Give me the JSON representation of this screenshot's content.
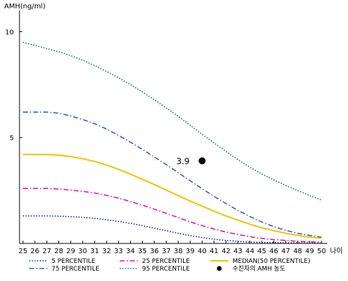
{
  "chart_data": {
    "type": "line",
    "ylabel": "AMH(ng/ml)",
    "xlabel": "나이",
    "ylim": [
      0,
      11
    ],
    "xlim": [
      25,
      50
    ],
    "yticks": [
      5,
      10
    ],
    "x": [
      25,
      26,
      27,
      28,
      29,
      30,
      31,
      32,
      33,
      34,
      35,
      36,
      37,
      38,
      39,
      40,
      41,
      42,
      43,
      44,
      45,
      46,
      47,
      48,
      49,
      50
    ],
    "grid": false,
    "legend_position": "bottom",
    "series": [
      {
        "name": "5 PERCENTILE",
        "color": "#1f2a8a",
        "dash": "1.6 2.2",
        "values": [
          1.3,
          1.3,
          1.3,
          1.29,
          1.26,
          1.23,
          1.19,
          1.12,
          1.04,
          0.95,
          0.84,
          0.72,
          0.6,
          0.48,
          0.37,
          0.28,
          0.2,
          0.14,
          0.1,
          0.07,
          0.05,
          0.04,
          0.03,
          0.03,
          0.02,
          0.02
        ]
      },
      {
        "name": "25 PERCENTILE",
        "color": "#e0168f",
        "dash": "7 3 1.6 3",
        "values": [
          2.6,
          2.6,
          2.6,
          2.57,
          2.52,
          2.46,
          2.38,
          2.27,
          2.14,
          1.98,
          1.81,
          1.62,
          1.42,
          1.22,
          1.02,
          0.84,
          0.68,
          0.54,
          0.42,
          0.32,
          0.24,
          0.18,
          0.14,
          0.1,
          0.08,
          0.06
        ]
      },
      {
        "name": "75 PERCENTILE",
        "color": "#3a5bc7",
        "dash": "7 3 1.6 3",
        "values": [
          6.2,
          6.2,
          6.2,
          6.15,
          6.02,
          5.85,
          5.65,
          5.4,
          5.1,
          4.78,
          4.44,
          4.08,
          3.72,
          3.34,
          2.96,
          2.58,
          2.22,
          1.88,
          1.56,
          1.27,
          1.01,
          0.79,
          0.62,
          0.48,
          0.38,
          0.3
        ]
      },
      {
        "name": "95 PERCENTILE",
        "color": "#1e7a4c",
        "dash": "1.6 2.2",
        "values": [
          9.5,
          9.35,
          9.2,
          9.05,
          8.87,
          8.65,
          8.4,
          8.12,
          7.82,
          7.5,
          7.15,
          6.78,
          6.4,
          6.0,
          5.58,
          5.15,
          4.74,
          4.34,
          3.95,
          3.6,
          3.28,
          3.0,
          2.74,
          2.5,
          2.26,
          2.05
        ]
      },
      {
        "name": "MEDIAN(50 PERCENTILE)",
        "color": "#f2c200",
        "dash": "",
        "values": [
          4.2,
          4.2,
          4.2,
          4.17,
          4.1,
          4.0,
          3.87,
          3.7,
          3.5,
          3.27,
          3.03,
          2.78,
          2.52,
          2.26,
          2.0,
          1.76,
          1.52,
          1.3,
          1.1,
          0.91,
          0.74,
          0.6,
          0.48,
          0.38,
          0.3,
          0.25
        ]
      }
    ],
    "points": [
      {
        "name": "수진자의 AMH 농도",
        "x": 40,
        "y": 3.9,
        "label": "3.9",
        "color": "#000000"
      }
    ]
  }
}
